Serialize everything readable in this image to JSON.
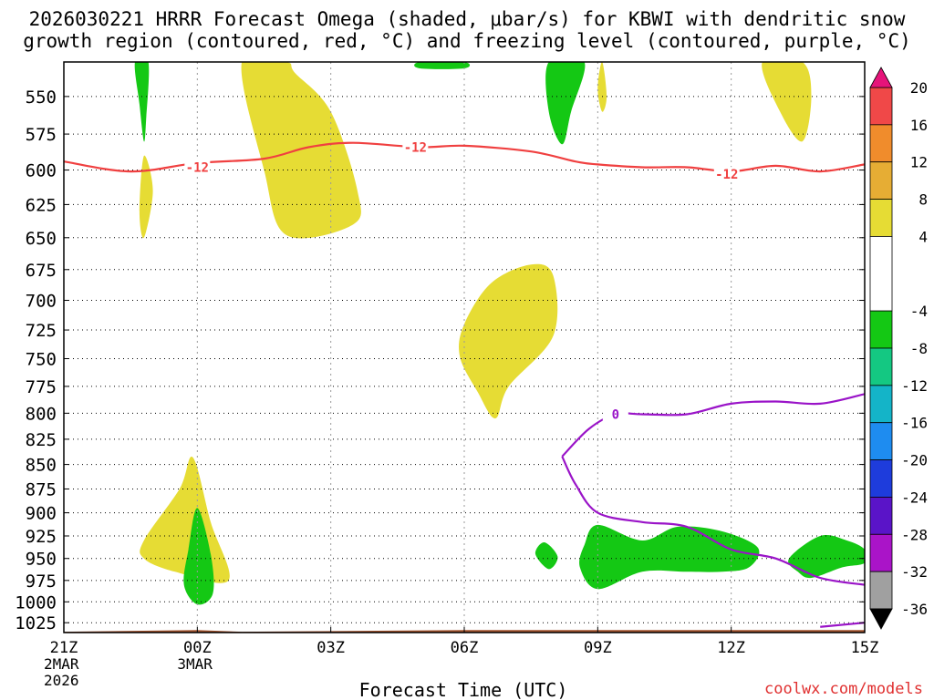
{
  "chart_data": {
    "type": "heatmap",
    "title_line1": "2026030221 HRRR Forecast Omega (shaded, μbar/s) for KBWI with dendritic snow",
    "title_line2": "growth region (contoured, red, °C) and freezing level (contoured, purple, °C)",
    "xlabel": "Forecast Time (UTC)",
    "credit": "coolwx.com/models",
    "x_ticks": [
      {
        "hour": 0,
        "label": "21Z",
        "sub1": "2MAR",
        "sub2": "2026"
      },
      {
        "hour": 3,
        "label": "00Z",
        "sub1": "3MAR",
        "sub2": ""
      },
      {
        "hour": 6,
        "label": "03Z",
        "sub1": "",
        "sub2": ""
      },
      {
        "hour": 9,
        "label": "06Z",
        "sub1": "",
        "sub2": ""
      },
      {
        "hour": 12,
        "label": "09Z",
        "sub1": "",
        "sub2": ""
      },
      {
        "hour": 15,
        "label": "12Z",
        "sub1": "",
        "sub2": ""
      },
      {
        "hour": 18,
        "label": "15Z",
        "sub1": "",
        "sub2": ""
      }
    ],
    "xlim": [
      0,
      18
    ],
    "y_ticks": [
      "550",
      "575",
      "600",
      "625",
      "650",
      "675",
      "700",
      "725",
      "750",
      "775",
      "800",
      "825",
      "850",
      "875",
      "900",
      "925",
      "950",
      "975",
      "1000",
      "1025"
    ],
    "y_axis": {
      "log_pressure": true,
      "p_top": 528,
      "p_bottom": 1037
    },
    "colorbar": {
      "labels": [
        "20",
        "16",
        "12",
        "8",
        "4",
        "-4",
        "-8",
        "-12",
        "-16",
        "-20",
        "-24",
        "-28",
        "-32",
        "-36"
      ],
      "bands": [
        {
          "from": 16,
          "to": 20,
          "color": "#f04848"
        },
        {
          "from": 12,
          "to": 16,
          "color": "#f08c2c"
        },
        {
          "from": 8,
          "to": 12,
          "color": "#e6ad34"
        },
        {
          "from": 4,
          "to": 8,
          "color": "#e6dc34"
        },
        {
          "from": -4,
          "to": 4,
          "color": "#ffffff"
        },
        {
          "from": -8,
          "to": -4,
          "color": "#14c814"
        },
        {
          "from": -12,
          "to": -8,
          "color": "#14c882"
        },
        {
          "from": -16,
          "to": -12,
          "color": "#14b4c8"
        },
        {
          "from": -20,
          "to": -16,
          "color": "#1e8cf0"
        },
        {
          "from": -24,
          "to": -20,
          "color": "#1e3cdc"
        },
        {
          "from": -28,
          "to": -24,
          "color": "#5a14c8"
        },
        {
          "from": -32,
          "to": -28,
          "color": "#aa14c8"
        },
        {
          "from": -36,
          "to": -32,
          "color": "#a0a0a0"
        }
      ],
      "above_color": "#e6147a",
      "below_color": "#000000"
    },
    "contours": [
      {
        "name": "dgz-minus-12",
        "label": "-12",
        "color": "#f04040",
        "label_points": [
          [
            3.0,
            598
          ],
          [
            7.9,
            584
          ],
          [
            14.9,
            603
          ]
        ],
        "points": [
          [
            0,
            594
          ],
          [
            1.5,
            601
          ],
          [
            3,
            595
          ],
          [
            4.5,
            592
          ],
          [
            5.5,
            584
          ],
          [
            6.5,
            581
          ],
          [
            8,
            584
          ],
          [
            9,
            583
          ],
          [
            10.5,
            587
          ],
          [
            11.5,
            594
          ],
          [
            12,
            596
          ],
          [
            13,
            598
          ],
          [
            14,
            598
          ],
          [
            15,
            601
          ],
          [
            16,
            597
          ],
          [
            17,
            601
          ],
          [
            18,
            596
          ]
        ]
      },
      {
        "name": "freezing-level-0",
        "label": "0",
        "color": "#9a14c8",
        "label_points": [
          [
            12.4,
            801
          ]
        ],
        "points": [
          [
            11.2,
            842
          ],
          [
            11.8,
            815
          ],
          [
            12.4,
            801
          ],
          [
            13,
            801
          ],
          [
            14,
            801
          ],
          [
            15,
            791
          ],
          [
            16,
            789
          ],
          [
            17,
            791
          ],
          [
            18,
            782
          ]
        ]
      },
      {
        "name": "freezing-level-0-lower",
        "label": "",
        "color": "#9a14c8",
        "label_points": [],
        "points": [
          [
            11.2,
            842
          ],
          [
            11.5,
            870
          ],
          [
            12,
            900
          ],
          [
            13,
            910
          ],
          [
            14,
            915
          ],
          [
            15,
            940
          ],
          [
            16,
            950
          ],
          [
            17,
            972
          ],
          [
            18,
            980
          ]
        ]
      },
      {
        "name": "freezing-level-0-surface",
        "label": "",
        "color": "#9a14c8",
        "label_points": [],
        "points": [
          [
            17,
            1030
          ],
          [
            18,
            1025
          ]
        ]
      }
    ],
    "shaded_regions": [
      {
        "name": "omega-pos-a",
        "value": 5,
        "color": "#e6dc34",
        "points": [
          [
            4,
            528
          ],
          [
            5,
            528
          ],
          [
            5.2,
            535
          ],
          [
            6,
            560
          ],
          [
            6.6,
            615
          ],
          [
            6.5,
            640
          ],
          [
            5,
            648
          ],
          [
            4.5,
            600
          ]
        ]
      },
      {
        "name": "omega-pos-b",
        "value": 5,
        "color": "#e6dc34",
        "points": [
          [
            1.8,
            590
          ],
          [
            2,
            615
          ],
          [
            1.8,
            650
          ],
          [
            1.7,
            630
          ]
        ]
      },
      {
        "name": "omega-pos-c",
        "value": 5,
        "color": "#e6dc34",
        "points": [
          [
            9.6,
            686
          ],
          [
            10.5,
            671
          ],
          [
            11,
            680
          ],
          [
            11,
            730
          ],
          [
            10,
            775
          ],
          [
            9.7,
            805
          ],
          [
            9.3,
            780
          ],
          [
            8.9,
            748
          ],
          [
            9.0,
            720
          ]
        ]
      },
      {
        "name": "omega-pos-d",
        "value": 5,
        "color": "#e6dc34",
        "points": [
          [
            2.9,
            843
          ],
          [
            3.3,
            910
          ],
          [
            3.7,
            975
          ],
          [
            2.5,
            965
          ],
          [
            1.8,
            950
          ],
          [
            1.8,
            930
          ],
          [
            2.6,
            875
          ]
        ]
      },
      {
        "name": "omega-pos-e",
        "value": 6,
        "color": "#e6dc34",
        "points": [
          [
            12.1,
            528
          ],
          [
            12.2,
            550
          ],
          [
            12.1,
            560
          ],
          [
            12.0,
            545
          ]
        ]
      },
      {
        "name": "omega-pos-f",
        "value": 6,
        "color": "#e6dc34",
        "points": [
          [
            15.7,
            528
          ],
          [
            16.6,
            528
          ],
          [
            16.8,
            550
          ],
          [
            16.6,
            580
          ],
          [
            16.1,
            560
          ]
        ]
      },
      {
        "name": "omega-pos-g",
        "value": 10,
        "color": "#e6ad34",
        "points": [
          [
            3.05,
            920
          ],
          [
            3.1,
            942
          ],
          [
            2.95,
            928
          ],
          [
            3.05,
            905
          ]
        ]
      },
      {
        "name": "omega-neg-a",
        "value": -6,
        "color": "#14c814",
        "points": [
          [
            1.6,
            528
          ],
          [
            1.9,
            528
          ],
          [
            1.85,
            565
          ],
          [
            1.8,
            580
          ],
          [
            1.7,
            555
          ]
        ]
      },
      {
        "name": "omega-neg-b",
        "value": -6,
        "color": "#14c814",
        "points": [
          [
            10.9,
            528
          ],
          [
            11.7,
            528
          ],
          [
            11.4,
            560
          ],
          [
            11.2,
            582
          ],
          [
            10.9,
            560
          ]
        ]
      },
      {
        "name": "omega-neg-c",
        "value": -5,
        "color": "#14c814",
        "points": [
          [
            8,
            528
          ],
          [
            9,
            528
          ],
          [
            9,
            532
          ],
          [
            8,
            532
          ]
        ]
      },
      {
        "name": "omega-neg-d",
        "value": -6,
        "color": "#14c814",
        "points": [
          [
            3.0,
            895
          ],
          [
            3.3,
            945
          ],
          [
            3.35,
            990
          ],
          [
            3.0,
            1003
          ],
          [
            2.7,
            980
          ],
          [
            2.8,
            940
          ]
        ]
      },
      {
        "name": "omega-neg-e",
        "value": -6,
        "color": "#14c814",
        "points": [
          [
            10.8,
            932
          ],
          [
            11.1,
            948
          ],
          [
            10.9,
            962
          ],
          [
            10.6,
            945
          ]
        ]
      },
      {
        "name": "omega-neg-f",
        "value": -6,
        "color": "#14c814",
        "points": [
          [
            12,
            913
          ],
          [
            13,
            930
          ],
          [
            13.8,
            915
          ],
          [
            14.8,
            920
          ],
          [
            15.6,
            938
          ],
          [
            15.4,
            960
          ],
          [
            14.8,
            965
          ],
          [
            14.0,
            965
          ],
          [
            13,
            965
          ],
          [
            12,
            985
          ],
          [
            11.6,
            960
          ],
          [
            11.7,
            935
          ]
        ]
      },
      {
        "name": "omega-neg-g",
        "value": -6,
        "color": "#14c814",
        "points": [
          [
            16.3,
            950
          ],
          [
            17,
            925
          ],
          [
            17.6,
            930
          ],
          [
            18,
            940
          ],
          [
            18,
            955
          ],
          [
            17.5,
            960
          ],
          [
            16.8,
            972
          ],
          [
            16.5,
            965
          ]
        ]
      }
    ],
    "terrain": {
      "color": "#a0522d",
      "points": [
        [
          0,
          1036
        ],
        [
          3,
          1034
        ],
        [
          4,
          1036
        ],
        [
          9,
          1034
        ],
        [
          18,
          1034
        ],
        [
          18,
          1037
        ],
        [
          0,
          1037
        ]
      ]
    }
  }
}
